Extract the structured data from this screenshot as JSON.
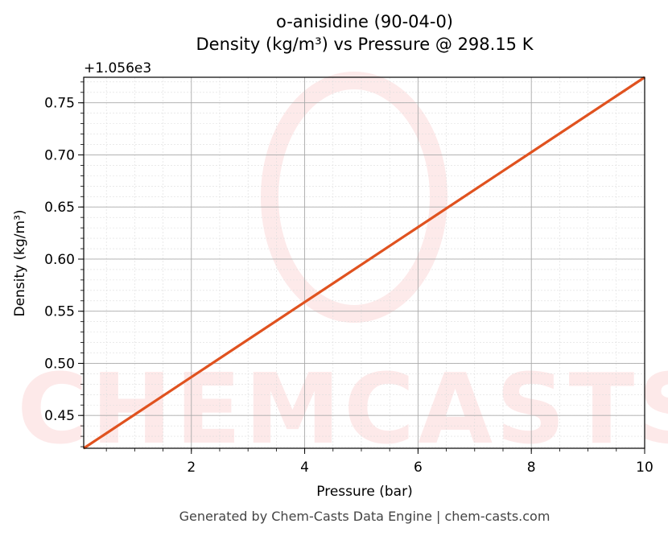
{
  "chart_data": {
    "type": "line",
    "title": "o-anisidine (90-04-0)",
    "subtitle": "Density (kg/m³) vs Pressure @ 298.15 K",
    "xlabel": "Pressure (bar)",
    "ylabel": "Density (kg/m³)",
    "y_offset_label": "+1.056e3",
    "xlim": [
      0.1,
      10
    ],
    "ylim": [
      0.4185,
      0.7745
    ],
    "xticks": [
      2,
      4,
      6,
      8,
      10
    ],
    "yticks": [
      0.45,
      0.5,
      0.55,
      0.6,
      0.65,
      0.7,
      0.75
    ],
    "ytick_labels": [
      "0.45",
      "0.50",
      "0.55",
      "0.60",
      "0.65",
      "0.70",
      "0.75"
    ],
    "grid": true,
    "series": [
      {
        "color": "#e0521f",
        "x": [
          0.1,
          10
        ],
        "y": [
          0.4185,
          0.7745
        ]
      }
    ],
    "watermark": "CHEMCASTS",
    "footer": "Generated by Chem-Casts Data Engine | chem-casts.com"
  }
}
